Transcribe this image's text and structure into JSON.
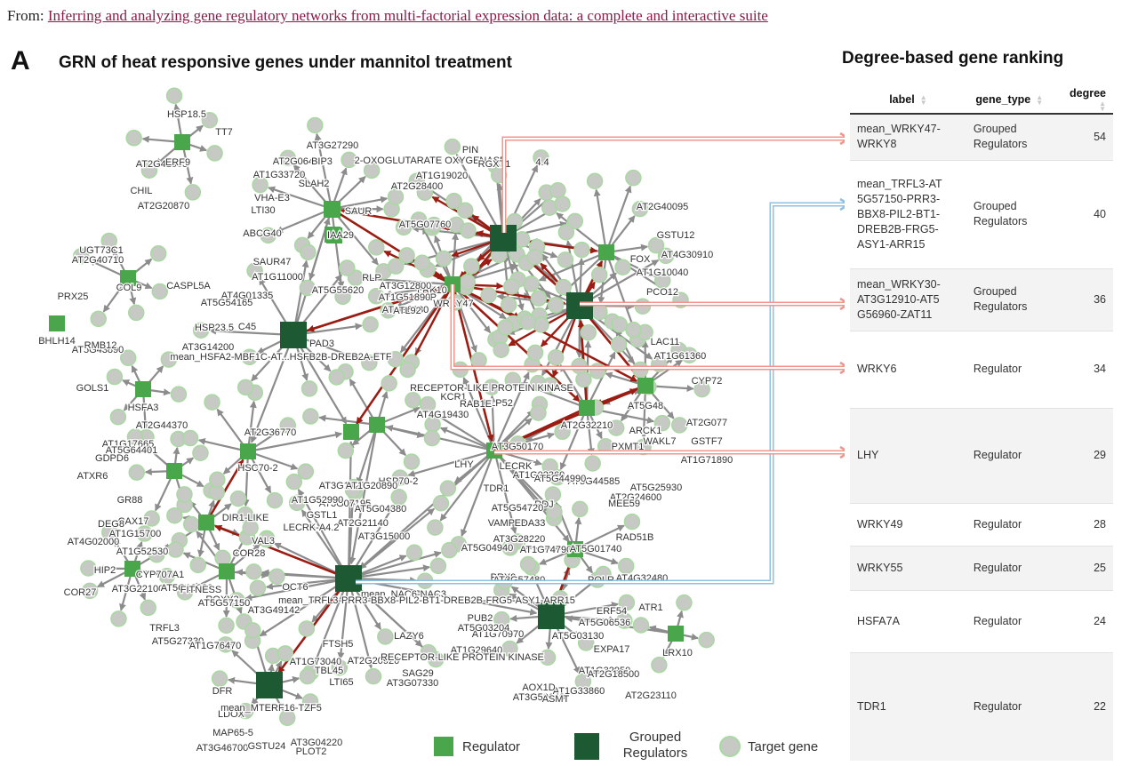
{
  "source": {
    "prefix": "From:",
    "link_text": "Inferring and analyzing gene regulatory networks from multi-factorial expression data: a complete and interactive suite"
  },
  "panel_letter": "A",
  "graph_title": "GRN of heat responsive genes under mannitol treatment",
  "ranking_title": "Degree-based gene ranking",
  "table": {
    "columns": [
      "label",
      "gene_type",
      "degree"
    ],
    "rows": [
      {
        "label": "mean_WRKY47-WRKY8",
        "gene_type": "Grouped Regulators",
        "degree": "54"
      },
      {
        "label": "mean_TRFL3-AT5G57150-PRR3-BBX8-PIL2-BT1-DREB2B-FRG5-ASY1-ARR15",
        "gene_type": "Grouped Regulators",
        "degree": "40"
      },
      {
        "label": "mean_WRKY30-AT3G12910-AT5G56960-ZAT11",
        "gene_type": "Grouped Regulators",
        "degree": "36"
      },
      {
        "label": "WRKY6",
        "gene_type": "Regulator",
        "degree": "34"
      },
      {
        "label": "LHY",
        "gene_type": "Regulator",
        "degree": "29"
      },
      {
        "label": "WRKY49",
        "gene_type": "Regulator",
        "degree": "28"
      },
      {
        "label": "WRKY55",
        "gene_type": "Regulator",
        "degree": "25"
      },
      {
        "label": "HSFA7A",
        "gene_type": "Regulator",
        "degree": "24"
      },
      {
        "label": "TDR1",
        "gene_type": "Regulator",
        "degree": "22"
      }
    ]
  },
  "legend": {
    "regulator": "Regulator",
    "grouped": "Grouped Regulators",
    "target": "Target gene"
  },
  "colors": {
    "regulator": "#4aa64a",
    "grouped": "#1d5a33",
    "target": "#c7c9c5",
    "target_border": "#a8d9a0",
    "edge": "#8c8c8c",
    "edge_red": "#9b1c12",
    "arrow_pink": "#f2968c",
    "arrow_blue": "#8fc1e3"
  },
  "network": {
    "regulators": [
      {
        "id": "ERF9"
      },
      {
        "id": "COL9"
      },
      {
        "id": "BHLH14"
      },
      {
        "id": "HSFA3"
      },
      {
        "id": "GDPD6"
      },
      {
        "id": "ATXR6"
      },
      {
        "id": "VAL3"
      },
      {
        "id": "CYP707"
      },
      {
        "id": "ROXY3"
      },
      {
        "id": "HSC70-2"
      },
      {
        "id": "HSFA7A"
      },
      {
        "id": "SAUR"
      },
      {
        "id": "WRKY55"
      },
      {
        "id": "WRKY6"
      },
      {
        "id": "TDR1"
      },
      {
        "id": "WRKY49"
      },
      {
        "id": "LHY"
      },
      {
        "id": "AGL"
      },
      {
        "id": "ROF2"
      },
      {
        "id": "PRX"
      },
      {
        "id": "ERF54"
      },
      {
        "id": "IAA29"
      }
    ],
    "grouped": [
      {
        "id": "mean_HSFA2-MBF1C-AT...HSFB2B-DREB2A-ETF"
      },
      {
        "id": "mean_WRKY47-WRKY8"
      },
      {
        "id": "mean_WRKY30"
      },
      {
        "id": "mean_TRFL3-...-ASY1-ARR15"
      },
      {
        "id": "mean_NAC6-NAC3"
      },
      {
        "id": "mean_MTERF16-TZF5"
      }
    ],
    "labels": [
      "HSP18.5",
      "TT7",
      "AT2G41905",
      "ERF9",
      "CHIL",
      "AT2G20870",
      "UGT73C1",
      "AT2G40710",
      "COL9",
      "PRX25",
      "BHLH14",
      "CASPL5A",
      "AT5G43890",
      "RMB12",
      "GOLS1",
      "HSFA3",
      "AT3G27290",
      "AT2G06450",
      "BIP3",
      "AT1G33720",
      "SLAH2",
      "VHA-E3",
      "LTI30",
      "ABCG40",
      "SAUR47",
      "AT1G11000",
      "AT4G01335",
      "AT5G54165",
      "HSP23.5",
      "C45",
      "AT3G14200",
      "mean_HSFA2-MBF1C-AT...HSFB2B-DREB2A-ETF",
      "PAD3",
      "2-OXOGLUTARATE OXYGENASE",
      "4.4",
      "PIN",
      "RGXT1",
      "AT1G19020",
      "AT2G28400",
      "AT5G07760",
      "LRK10",
      "RLP",
      "AT5G55620",
      "AT3G12800",
      "ESP",
      "AT1G51890",
      "AT1G6380",
      "ATL92",
      "IAA29",
      "SAUR",
      "WRKY47",
      "AT2G40095",
      "GSTU12",
      "AT4G30910",
      "AT1G10040",
      "FOX",
      "PCO12",
      "LAC11",
      "AT1G61360",
      "RECEPTOR-LIKE PROTEIN KINASE",
      "RLP52",
      "KCR1",
      "RAB1E",
      "AT4G19430",
      "AT2G32210",
      "ARCK1",
      "WAKL7",
      "PXMT1",
      "AT5G25930",
      "AT2G24600",
      "MEE59",
      "AT5G44585",
      "AT3G50170",
      "LECRK",
      "AT1G02360",
      "AT5G44990",
      "LHY",
      "TDR1",
      "AT5G48",
      "CYP72",
      "AT2G077",
      "GSTF7",
      "AT1G71890",
      "AT1G17665",
      "GDPD6",
      "AT5G64401",
      "ATXR6",
      "GR88",
      "CAX17",
      "DEG8",
      "AT1G15700",
      "AT4G02000",
      "HIP2",
      "COR27",
      "AT1G52530",
      "CYP707A1",
      "AT3G22100",
      "AT5G13230",
      "FITNESS",
      "ROXY3",
      "AT5G57150",
      "TRFL3",
      "AT5G27330",
      "AT1G76470",
      "AT3G49142",
      "OCT6",
      "COR28",
      "VAL3",
      "DIR1-LIKE",
      "AT2G36770",
      "AT2G44370",
      "HSC70-2",
      "AT3G07195",
      "AT3G14230",
      "HSP70-2",
      "AT1G20890",
      "AT3G15000",
      "AT5G04380",
      "AT2G21140",
      "AT1G52990",
      "GSTL1",
      "LECRK-A4.2",
      "AT5G04940",
      "VAMP72",
      "EDA33",
      "RDJ",
      "AT5G54720",
      "AT3G28220",
      "AT1G74790",
      "AT5G01740",
      "POLR",
      "PRX9",
      "AT3G57480",
      "RAD51B",
      "AT4G32480",
      "ATR1",
      "LRX10",
      "ERF54",
      "AT5G06536",
      "EXPA17",
      "AT1G32950",
      "AT1G33860",
      "AT2G18500",
      "AOX1D",
      "AT3G50140",
      "ASMT",
      "AT2G23110",
      "AT5G03130",
      "mean_NAC6-NAC3",
      "PUB2",
      "AT1G70970",
      "AT1G29640",
      "AT5G03204",
      "LAZY6",
      "AT2G20920",
      "RECEPTOR-LIKE PROTEIN KINASE",
      "SAG29",
      "AT3G07330",
      "AT1G73040",
      "FTSH5",
      "TBL45",
      "LTI65",
      "DFR",
      "LDOX",
      "MAP65-5",
      "AT3G46700",
      "GSTU24",
      "AT3G04220",
      "PLOT2",
      "mean_MTERF16-TZF5",
      "mean_TRFL3-PRR3-BBX8-PIL2-BT1-DREB2B-FRG5-ASY1-ARR15"
    ]
  }
}
